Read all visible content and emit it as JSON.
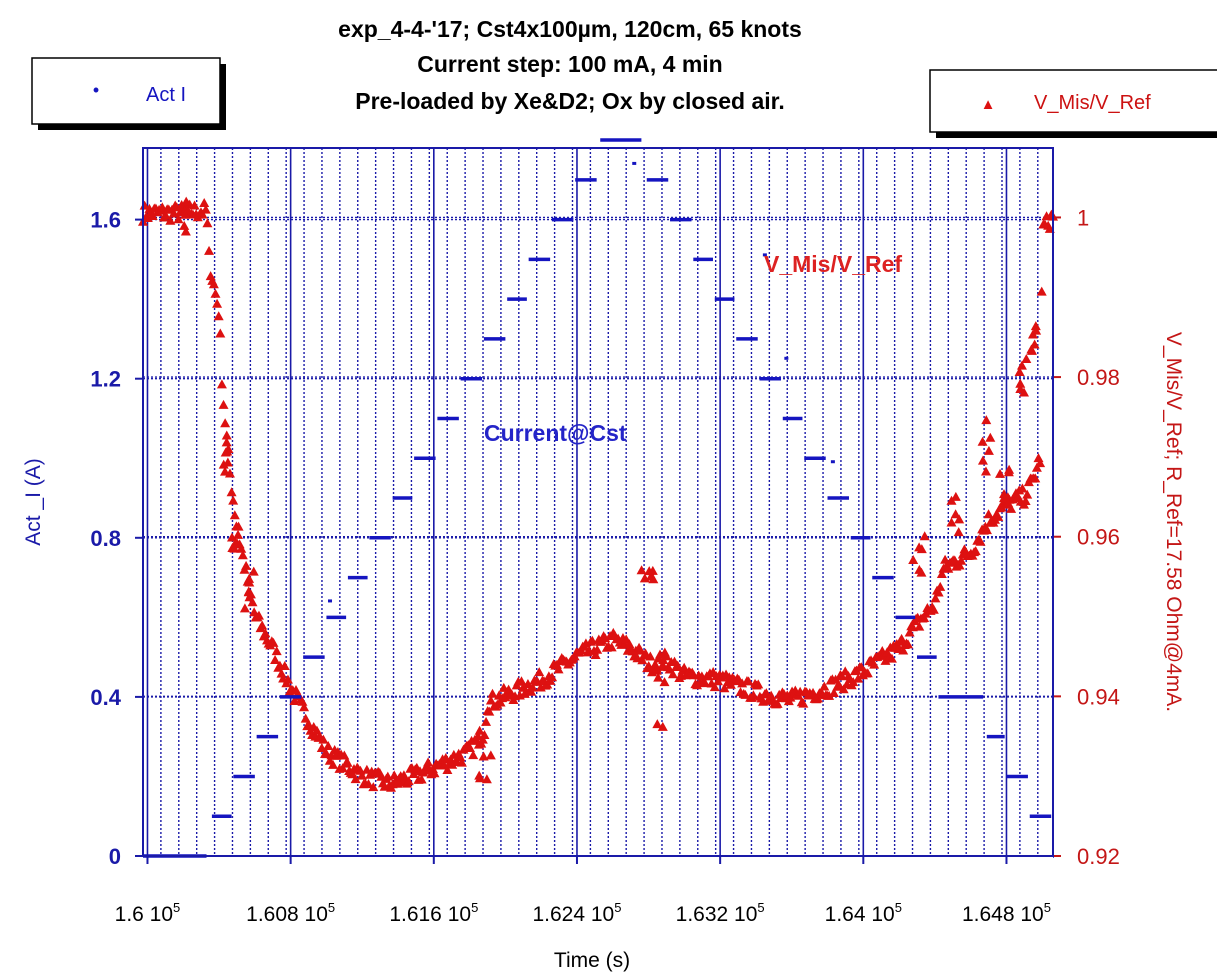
{
  "chart_data": {
    "type": "scatter",
    "title_lines": [
      "exp_4-4-'17; Cst4x100µm, 120cm, 65 knots",
      "Current step: 100 mA, 4 min",
      "Pre-loaded by Xe&D2; Ox by closed air."
    ],
    "xlabel": "Time (s)",
    "ylabel_left": "Act _I (A)",
    "ylabel_right": "V_Mis/V_Ref;   R_Ref=17.58 Ohm@4mA.",
    "x_tick_labels": [
      "1.6 10",
      "1.608 10",
      "1.616 10",
      "1.624 10",
      "1.632 10",
      "1.64 10",
      "1.648 10"
    ],
    "x_tick_exponent": "5",
    "x_ticks": [
      160000,
      160800,
      161600,
      162400,
      163200,
      164000,
      164800
    ],
    "xlim": [
      159975,
      165060
    ],
    "y_left_ticks": [
      {
        "v": 0,
        "label": "0"
      },
      {
        "v": 0.4,
        "label": "0.4"
      },
      {
        "v": 0.8,
        "label": "0.8"
      },
      {
        "v": 1.2,
        "label": "1.2"
      },
      {
        "v": 1.6,
        "label": "1.6"
      }
    ],
    "ylim_left": [
      0,
      1.78
    ],
    "y_right_ticks": [
      {
        "v": 0.92,
        "label": "0.92"
      },
      {
        "v": 0.94,
        "label": "0.94"
      },
      {
        "v": 0.96,
        "label": "0.96"
      },
      {
        "v": 0.98,
        "label": "0.98"
      },
      {
        "v": 1.0,
        "label": "1"
      }
    ],
    "ylim_right": [
      0.92,
      1.0087
    ],
    "grid": true,
    "legend_left": {
      "label": "Act I",
      "marker": "•"
    },
    "legend_right": {
      "label": "V_Mis/V_Ref",
      "marker": "▲"
    },
    "annotations": {
      "current": "Current@Cst",
      "ratio": "V_Mis/V_Ref"
    },
    "series": [
      {
        "name": "Act I",
        "axis": "left",
        "color": "#1515c0",
        "steps": [
          [
            159975,
            160330,
            0.0
          ],
          [
            160360,
            160470,
            0.1
          ],
          [
            160480,
            160600,
            0.2
          ],
          [
            160610,
            160730,
            0.3
          ],
          [
            160740,
            160860,
            0.4
          ],
          [
            160870,
            160990,
            0.5
          ],
          [
            161000,
            161110,
            0.6
          ],
          [
            161120,
            161230,
            0.7
          ],
          [
            161240,
            161360,
            0.8
          ],
          [
            161370,
            161480,
            0.9
          ],
          [
            161490,
            161610,
            1.0
          ],
          [
            161620,
            161740,
            1.1
          ],
          [
            161750,
            161870,
            1.2
          ],
          [
            161880,
            162000,
            1.3
          ],
          [
            162010,
            162120,
            1.4
          ],
          [
            162130,
            162250,
            1.5
          ],
          [
            162260,
            162380,
            1.6
          ],
          [
            162390,
            162510,
            1.7
          ],
          [
            162530,
            162760,
            1.8
          ],
          [
            162790,
            162910,
            1.7
          ],
          [
            162920,
            163040,
            1.6
          ],
          [
            163050,
            163160,
            1.5
          ],
          [
            163170,
            163280,
            1.4
          ],
          [
            163290,
            163410,
            1.3
          ],
          [
            163420,
            163540,
            1.2
          ],
          [
            163550,
            163660,
            1.1
          ],
          [
            163670,
            163790,
            1.0
          ],
          [
            163800,
            163920,
            0.9
          ],
          [
            163930,
            164040,
            0.8
          ],
          [
            164050,
            164170,
            0.7
          ],
          [
            164180,
            164290,
            0.6
          ],
          [
            164300,
            164410,
            0.5
          ],
          [
            164420,
            164670,
            0.4
          ],
          [
            164690,
            164790,
            0.3
          ],
          [
            164800,
            164920,
            0.2
          ],
          [
            164930,
            165050,
            0.1
          ],
          [
            165060,
            165060,
            0.0
          ]
        ],
        "final_step": [
          164990,
          165060,
          0.0
        ],
        "stray_points": [
          [
            161020,
            0.64
          ],
          [
            162720,
            1.74
          ],
          [
            163450,
            1.51
          ],
          [
            163570,
            1.25
          ],
          [
            163830,
            0.99
          ]
        ]
      },
      {
        "name": "V_Mis/V_Ref",
        "axis": "right",
        "color": "#dd1111",
        "knots": [
          [
            159975,
            1.0005
          ],
          [
            160150,
            1.0005
          ],
          [
            160330,
            1.0008
          ],
          [
            160345,
            0.9945
          ],
          [
            160400,
            0.988
          ],
          [
            160420,
            0.978
          ],
          [
            160460,
            0.968
          ],
          [
            160500,
            0.961
          ],
          [
            160600,
            0.95
          ],
          [
            160700,
            0.946
          ],
          [
            160800,
            0.941
          ],
          [
            160900,
            0.937
          ],
          [
            161000,
            0.933
          ],
          [
            161200,
            0.93
          ],
          [
            161350,
            0.929
          ],
          [
            161500,
            0.93
          ],
          [
            161600,
            0.931
          ],
          [
            161700,
            0.932
          ],
          [
            161800,
            0.933
          ],
          [
            161880,
            0.9355
          ],
          [
            161900,
            0.939
          ],
          [
            162000,
            0.94
          ],
          [
            162200,
            0.942
          ],
          [
            162400,
            0.945
          ],
          [
            162600,
            0.947
          ],
          [
            162700,
            0.946
          ],
          [
            162810,
            0.944
          ],
          [
            162900,
            0.9445
          ],
          [
            163000,
            0.9425
          ],
          [
            163200,
            0.942
          ],
          [
            163400,
            0.9405
          ],
          [
            163600,
            0.9395
          ],
          [
            163800,
            0.941
          ],
          [
            164000,
            0.943
          ],
          [
            164200,
            0.946
          ],
          [
            164300,
            0.949
          ],
          [
            164400,
            0.9515
          ],
          [
            164450,
            0.956
          ],
          [
            164600,
            0.958
          ],
          [
            164700,
            0.962
          ],
          [
            164800,
            0.964
          ],
          [
            164900,
            0.965
          ],
          [
            164950,
            0.967
          ],
          [
            164990,
            0.97
          ],
          [
            165000,
            0.9985
          ],
          [
            165060,
            1.0
          ]
        ],
        "clusters": [
          [
            160160,
            160240,
            0.998,
            1.002
          ],
          [
            160420,
            160450,
            0.968,
            0.972
          ],
          [
            160470,
            160520,
            0.957,
            0.962
          ],
          [
            160540,
            160600,
            0.948,
            0.956
          ],
          [
            161850,
            161920,
            0.928,
            0.935
          ],
          [
            162760,
            162830,
            0.9545,
            0.956
          ],
          [
            162840,
            162890,
            0.936,
            0.948
          ],
          [
            164250,
            164350,
            0.955,
            0.96
          ],
          [
            164480,
            164560,
            0.96,
            0.965
          ],
          [
            164660,
            164710,
            0.968,
            0.976
          ],
          [
            164760,
            164820,
            0.964,
            0.97
          ],
          [
            164870,
            164930,
            0.978,
            0.983
          ],
          [
            164930,
            164980,
            0.982,
            0.987
          ]
        ]
      }
    ]
  }
}
